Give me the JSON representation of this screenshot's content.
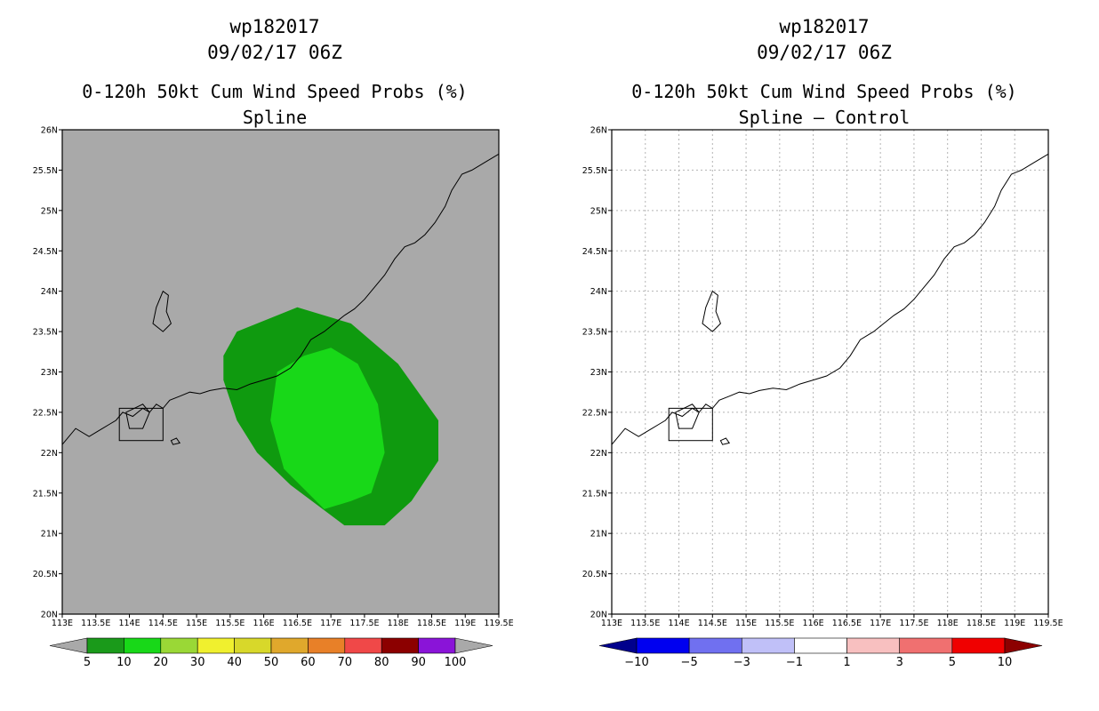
{
  "chart_data": [
    {
      "type": "heatmap",
      "storm_id": "wp182017",
      "date": "09/02/17 06Z",
      "title": "0-120h 50kt Cum Wind Speed Probs (%)",
      "subtitle": "Spline",
      "x_ticks": [
        "113E",
        "113.5E",
        "114E",
        "114.5E",
        "115E",
        "115.5E",
        "116E",
        "116.5E",
        "117E",
        "117.5E",
        "118E",
        "118.5E",
        "119E",
        "119.5E"
      ],
      "y_ticks": [
        "20N",
        "20.5N",
        "21N",
        "21.5N",
        "22N",
        "22.5N",
        "23N",
        "23.5N",
        "24N",
        "24.5N",
        "25N",
        "25.5N",
        "26N"
      ],
      "xlim": [
        113,
        119.5
      ],
      "ylim": [
        20,
        26
      ],
      "grid": false,
      "background_color": "#a9a9a9",
      "colorbar": {
        "labels": [
          "5",
          "10",
          "20",
          "30",
          "40",
          "50",
          "60",
          "70",
          "80",
          "90",
          "100"
        ],
        "colors": [
          "#1a9a1a",
          "#18d818",
          "#9ad836",
          "#f0f02e",
          "#d8d82a",
          "#e0a82c",
          "#e88028",
          "#f04848",
          "#8c0000",
          "#8a14d8"
        ],
        "end_color": "#a9a9a9"
      },
      "contours": [
        {
          "level": "5-10%",
          "color": "#0f9a0f",
          "lon": [
            115.6,
            116.5,
            117.3,
            118.0,
            118.6,
            118.6,
            118.2,
            117.8,
            117.2,
            116.4,
            115.9,
            115.6,
            115.4,
            115.4
          ],
          "lat": [
            23.5,
            23.8,
            23.6,
            23.1,
            22.4,
            21.9,
            21.4,
            21.1,
            21.1,
            21.6,
            22.0,
            22.4,
            22.9,
            23.2
          ]
        },
        {
          "level": "10-20%",
          "color": "#18d818",
          "lon": [
            116.6,
            117.0,
            117.4,
            117.7,
            117.8,
            117.6,
            117.3,
            116.9,
            116.3,
            116.1,
            116.2
          ],
          "lat": [
            23.2,
            23.3,
            23.1,
            22.6,
            22.0,
            21.5,
            21.4,
            21.3,
            21.8,
            22.4,
            23.0
          ]
        }
      ]
    },
    {
      "type": "heatmap",
      "storm_id": "wp182017",
      "date": "09/02/17 06Z",
      "title": "0-120h 50kt Cum Wind Speed Probs (%)",
      "subtitle": "Spline – Control",
      "x_ticks": [
        "113E",
        "113.5E",
        "114E",
        "114.5E",
        "115E",
        "115.5E",
        "116E",
        "116.5E",
        "117E",
        "117.5E",
        "118E",
        "118.5E",
        "119E",
        "119.5E"
      ],
      "y_ticks": [
        "20N",
        "20.5N",
        "21N",
        "21.5N",
        "22N",
        "22.5N",
        "23N",
        "23.5N",
        "24N",
        "24.5N",
        "25N",
        "25.5N",
        "26N"
      ],
      "xlim": [
        113,
        119.5
      ],
      "ylim": [
        20,
        26
      ],
      "grid": true,
      "background_color": "#ffffff",
      "colorbar": {
        "labels": [
          "−10",
          "−5",
          "−3",
          "−1",
          "1",
          "3",
          "5",
          "10"
        ],
        "colors": [
          "#0000f0",
          "#7070f0",
          "#c0c0f8",
          "#ffffff",
          "#f8c0c0",
          "#f07070",
          "#f00000"
        ],
        "start_color": "#00008c",
        "end_color": "#8c0000"
      },
      "contours": []
    }
  ],
  "coastline": [
    [
      113.0,
      22.1
    ],
    [
      113.2,
      22.3
    ],
    [
      113.4,
      22.2
    ],
    [
      113.5,
      22.25
    ],
    [
      113.6,
      22.3
    ],
    [
      113.7,
      22.35
    ],
    [
      113.8,
      22.4
    ],
    [
      113.9,
      22.5
    ],
    [
      114.05,
      22.45
    ],
    [
      114.2,
      22.55
    ],
    [
      114.3,
      22.5
    ],
    [
      114.4,
      22.6
    ],
    [
      114.5,
      22.55
    ],
    [
      114.6,
      22.65
    ],
    [
      114.75,
      22.7
    ],
    [
      114.9,
      22.75
    ],
    [
      115.05,
      22.73
    ],
    [
      115.2,
      22.77
    ],
    [
      115.4,
      22.8
    ],
    [
      115.6,
      22.78
    ],
    [
      115.8,
      22.85
    ],
    [
      116.0,
      22.9
    ],
    [
      116.2,
      22.95
    ],
    [
      116.4,
      23.05
    ],
    [
      116.55,
      23.2
    ],
    [
      116.7,
      23.4
    ],
    [
      116.9,
      23.5
    ],
    [
      117.05,
      23.6
    ],
    [
      117.2,
      23.7
    ],
    [
      117.35,
      23.78
    ],
    [
      117.5,
      23.9
    ],
    [
      117.65,
      24.05
    ],
    [
      117.8,
      24.2
    ],
    [
      117.95,
      24.4
    ],
    [
      118.1,
      24.55
    ],
    [
      118.25,
      24.6
    ],
    [
      118.4,
      24.7
    ],
    [
      118.55,
      24.85
    ],
    [
      118.7,
      25.05
    ],
    [
      118.8,
      25.25
    ],
    [
      118.95,
      25.45
    ],
    [
      119.1,
      25.5
    ],
    [
      119.3,
      25.6
    ],
    [
      119.5,
      25.7
    ]
  ],
  "islands": [
    [
      [
        114.4,
        23.8
      ],
      [
        114.5,
        24.0
      ],
      [
        114.58,
        23.95
      ],
      [
        114.55,
        23.75
      ],
      [
        114.62,
        23.6
      ],
      [
        114.5,
        23.5
      ],
      [
        114.35,
        23.6
      ]
    ],
    [
      [
        113.95,
        22.5
      ],
      [
        114.2,
        22.6
      ],
      [
        114.3,
        22.5
      ],
      [
        114.2,
        22.3
      ],
      [
        114.0,
        22.3
      ]
    ],
    [
      [
        114.65,
        22.1
      ],
      [
        114.62,
        22.15
      ],
      [
        114.7,
        22.18
      ],
      [
        114.75,
        22.12
      ]
    ]
  ],
  "boundary_box": {
    "lon": [
      113.85,
      114.5
    ],
    "lat": [
      22.15,
      22.55
    ]
  }
}
